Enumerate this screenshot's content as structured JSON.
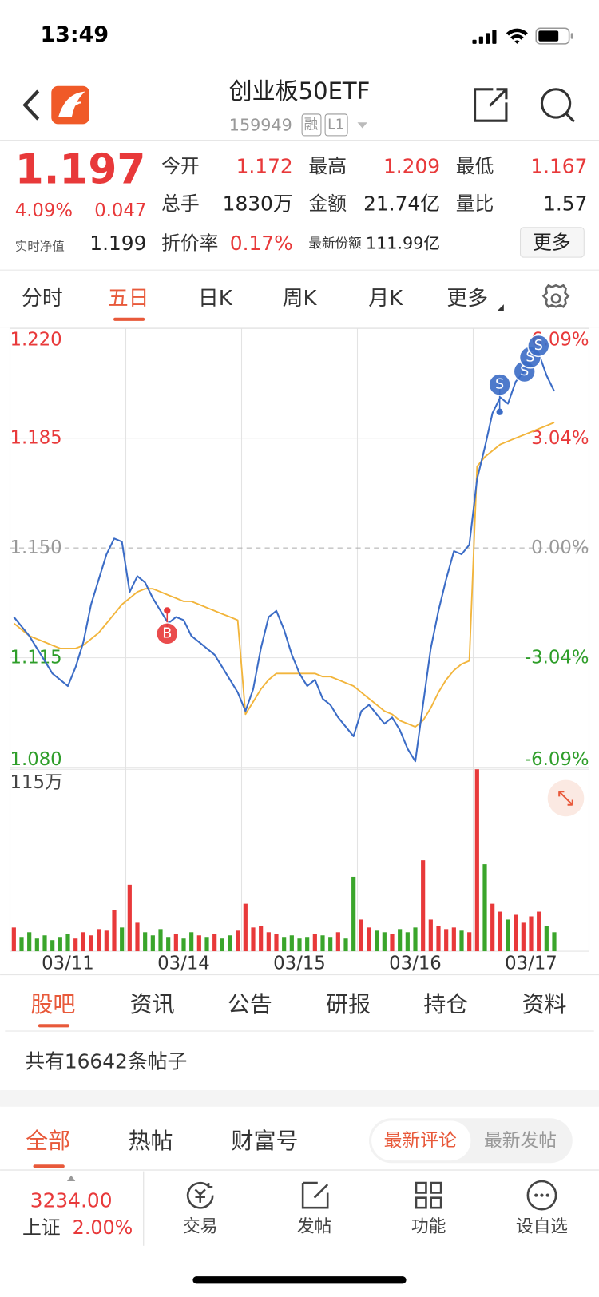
{
  "status_bar": {
    "time": "13:49"
  },
  "header": {
    "title": "创业板50ETF",
    "code": "159949",
    "badges": [
      "融",
      "L1"
    ]
  },
  "quote": {
    "price": "1.197",
    "change_pct": "4.09%",
    "change": "0.047",
    "nav_label": "实时净值",
    "nav": "1.199",
    "more": "更多",
    "fields": [
      [
        "今开",
        "1.172"
      ],
      [
        "最高",
        "1.209"
      ],
      [
        "最低",
        "1.167"
      ],
      [
        "总手",
        "1830万"
      ],
      [
        "金额",
        "21.74亿"
      ],
      [
        "量比",
        "1.57"
      ],
      [
        "折价率",
        "0.17%"
      ],
      [
        "最新份额",
        "111.99亿"
      ]
    ]
  },
  "chart_tabs": [
    "分时",
    "五日",
    "日K",
    "周K",
    "月K",
    "更多"
  ],
  "chart_data": [
    {
      "type": "line",
      "categories": [
        null,
        null,
        null,
        null,
        null,
        null,
        null,
        "03/11",
        null,
        null,
        null,
        null,
        null,
        null,
        null,
        null,
        null,
        null,
        null,
        null,
        null,
        null,
        "03/14",
        null,
        null,
        null,
        null,
        null,
        null,
        null,
        null,
        null,
        null,
        null,
        null,
        null,
        null,
        "03/15",
        null,
        null,
        null,
        null,
        null,
        null,
        null,
        null,
        null,
        null,
        null,
        null,
        null,
        null,
        "03/16",
        null,
        null,
        null,
        null,
        null,
        null,
        null,
        null,
        null,
        null,
        null,
        null,
        null,
        null,
        "03/17",
        null,
        null,
        null,
        null,
        null,
        null,
        null
      ],
      "ylim": [
        1.08,
        1.22
      ],
      "yticks": [
        {
          "value": 1.08,
          "label": "1.080"
        },
        1.115,
        {
          "value": 1.15,
          "label": "1.150"
        },
        1.185,
        {
          "value": 1.22,
          "label": "1.220"
        }
      ],
      "y2lim": [
        -6.09,
        6.09
      ],
      "y2ticks": [
        {
          "value": -6.09,
          "label": "-6.09%"
        },
        {
          "value": -3.04,
          "label": "-3.04%"
        },
        {
          "value": 0,
          "label": "0.00%"
        },
        {
          "value": 3.04,
          "label": "3.04%"
        },
        {
          "value": 6.09,
          "label": "6.09%"
        }
      ],
      "grid": true,
      "annotations": [
        "B",
        "S",
        "S",
        "S",
        "S"
      ],
      "series": [
        {
          "color": "#3b6cc6",
          "values": [
            1.128,
            1.125,
            1.122,
            1.118,
            1.114,
            1.11,
            1.108,
            1.106,
            1.112,
            1.12,
            1.132,
            1.14,
            1.148,
            1.153,
            1.152,
            1.136,
            1.141,
            1.139,
            1.134,
            1.13,
            1.126,
            1.128,
            1.127,
            1.122,
            1.12,
            1.118,
            1.116,
            1.112,
            1.108,
            1.104,
            1.098,
            1.105,
            1.118,
            1.128,
            1.13,
            1.124,
            1.116,
            1.11,
            1.106,
            1.108,
            1.102,
            1.1,
            1.096,
            1.093,
            1.09,
            1.098,
            1.1,
            1.097,
            1.094,
            1.096,
            1.092,
            1.086,
            1.082,
            1.1,
            1.118,
            1.13,
            1.14,
            1.149,
            1.148,
            1.151,
            1.172,
            1.182,
            1.193,
            1.198,
            1.196,
            1.203,
            1.206,
            1.21,
            1.212,
            1.205,
            1.2,
            null,
            null,
            null,
            null
          ]
        },
        {
          "color": "#f2b53c",
          "values": [
            1.126,
            1.124,
            1.122,
            1.121,
            1.12,
            1.119,
            1.118,
            1.118,
            1.118,
            1.119,
            1.121,
            1.123,
            1.126,
            1.129,
            1.132,
            1.134,
            1.136,
            1.137,
            1.137,
            1.136,
            1.135,
            1.134,
            1.133,
            1.133,
            1.132,
            1.131,
            1.13,
            1.129,
            1.128,
            1.127,
            1.097,
            1.101,
            1.105,
            1.108,
            1.11,
            1.11,
            1.11,
            1.11,
            1.11,
            1.11,
            1.109,
            1.109,
            1.108,
            1.107,
            1.106,
            1.104,
            1.102,
            1.1,
            1.098,
            1.097,
            1.095,
            1.094,
            1.093,
            1.095,
            1.099,
            1.104,
            1.108,
            1.111,
            1.113,
            1.114,
            1.176,
            1.179,
            1.181,
            1.183,
            1.184,
            1.185,
            1.186,
            1.187,
            1.188,
            1.189,
            1.19,
            null,
            null,
            null,
            null
          ]
        }
      ]
    },
    {
      "type": "bar",
      "ylim": [
        0,
        1150000
      ],
      "yticks": [
        {
          "value": 1150000,
          "label": "115万"
        }
      ],
      "series": [
        {
          "color": "#e8393a",
          "values": [
            150000,
            null,
            null,
            null,
            null,
            null,
            null,
            null,
            80000,
            120000,
            100000,
            140000,
            130000,
            260000,
            null,
            420000,
            180000,
            null,
            null,
            null,
            null,
            110000,
            null,
            null,
            100000,
            null,
            110000,
            null,
            null,
            130000,
            300000,
            150000,
            160000,
            120000,
            110000,
            null,
            null,
            null,
            null,
            110000,
            null,
            null,
            120000,
            null,
            null,
            200000,
            150000,
            null,
            null,
            110000,
            null,
            null,
            null,
            575000,
            200000,
            160000,
            140000,
            150000,
            null,
            120000,
            1150000,
            null,
            300000,
            250000,
            null,
            230000,
            180000,
            220000,
            250000,
            null,
            null,
            null,
            null,
            null,
            null
          ]
        },
        {
          "color": "#3aa52b",
          "values": [
            null,
            90000,
            120000,
            80000,
            100000,
            70000,
            90000,
            110000,
            null,
            null,
            null,
            null,
            null,
            null,
            150000,
            null,
            null,
            120000,
            100000,
            140000,
            90000,
            null,
            80000,
            120000,
            null,
            90000,
            null,
            80000,
            100000,
            null,
            null,
            null,
            null,
            null,
            null,
            90000,
            100000,
            80000,
            90000,
            null,
            100000,
            90000,
            null,
            80000,
            470000,
            null,
            null,
            130000,
            120000,
            null,
            140000,
            120000,
            150000,
            null,
            null,
            null,
            null,
            null,
            130000,
            null,
            null,
            550000,
            null,
            null,
            200000,
            null,
            null,
            null,
            null,
            160000,
            120000,
            null,
            null,
            null,
            null
          ]
        }
      ]
    }
  ],
  "forum": {
    "tabs": [
      "股吧",
      "资讯",
      "公告",
      "研报",
      "持仓",
      "资料"
    ],
    "post_count": "共有16642条帖子",
    "filters": [
      "全部",
      "热帖",
      "财富号"
    ],
    "sort": [
      "最新评论",
      "最新发帖"
    ]
  },
  "bottom_bar": {
    "index_value": "3234.00",
    "index_name": "上证",
    "index_change": "2.00%",
    "nav": [
      "交易",
      "发帖",
      "功能",
      "设自选"
    ]
  }
}
